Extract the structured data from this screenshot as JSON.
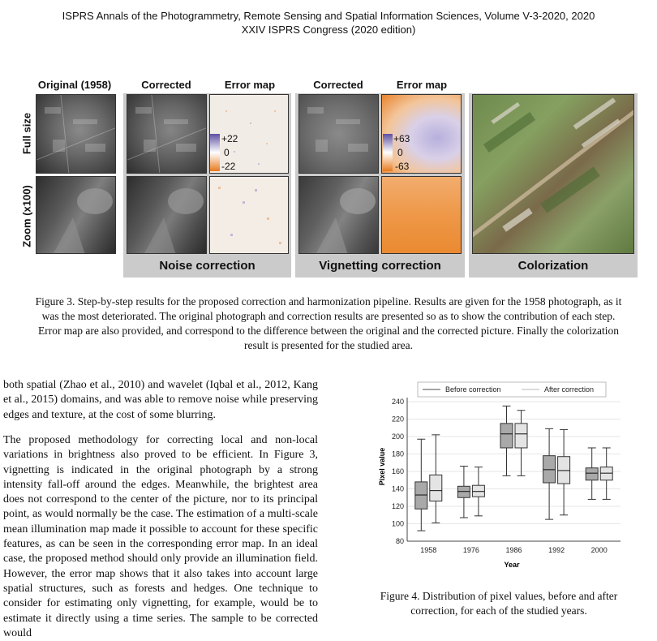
{
  "header": {
    "line1": "ISPRS Annals of the Photogrammetry, Remote Sensing and Spatial Information Sciences, Volume V-3-2020, 2020",
    "line2": "XXIV ISPRS Congress (2020 edition)"
  },
  "figure3": {
    "col_original": "Original (1958)",
    "col_corrected_1": "Corrected",
    "col_error_1": "Error map",
    "col_corrected_2": "Corrected",
    "col_error_2": "Error map",
    "row_full": "Full size",
    "row_zoom": "Zoom (x100)",
    "noise_scale": {
      "top": "+22",
      "mid": "0",
      "bottom": "-22"
    },
    "vign_scale": {
      "top": "+63",
      "mid": "0",
      "bottom": "-63"
    },
    "group_noise": "Noise correction",
    "group_vignetting": "Vignetting correction",
    "group_colorization": "Colorization",
    "caption_l1": "Figure 3. Step-by-step results for the proposed correction and harmonization pipeline. Results are given for the 1958 photograph, as it",
    "caption_l2": "was the most deteriorated. The original photograph and correction results are presented so as to show the contribution of each step.",
    "caption_l3": "Error map are also provided, and correspond to the difference between the original and the corrected picture. Finally the colorization",
    "caption_l4": "result is presented for the studied area."
  },
  "body": {
    "para1": "both spatial (Zhao et al., 2010) and wavelet (Iqbal et al., 2012, Kang et al., 2015) domains, and was able to remove noise while preserving edges and texture, at the cost of some blurring.",
    "para2": "The proposed methodology for correcting local and non-local variations in brightness also proved to be efficient. In Figure 3, vignetting is indicated in the original photograph by a strong intensity fall-off around the edges. Meanwhile, the brightest area does not correspond to the center of the picture, nor to its principal point, as would normally be the case. The estimation of a multi-scale mean illumination map made it possible to account for these specific features, as can be seen in the corresponding error map. In an ideal case, the proposed method should only provide an illumination field. However, the error map shows that it also takes into account large spatial structures, such as forests and hedges. One technique to consider for estimating only vignetting, for example, would be to estimate it directly using a time series. The sample to be corrected would"
  },
  "figure4": {
    "caption_l1": "Figure 4. Distribution of pixel values, before and after",
    "caption_l2": "correction, for each of the studied years."
  },
  "chart_data": {
    "type": "box",
    "xlabel": "Year",
    "ylabel": "Pixel value",
    "ylim": [
      80,
      240
    ],
    "yticks": [
      80,
      100,
      120,
      140,
      160,
      180,
      200,
      220,
      240
    ],
    "grid": true,
    "legend_position": "top",
    "categories": [
      "1958",
      "1976",
      "1986",
      "1992",
      "2000"
    ],
    "series": [
      {
        "name": "Before correction",
        "color": "#a9a9a9",
        "boxes": [
          {
            "min": 92,
            "q1": 117,
            "median": 133,
            "q3": 148,
            "max": 197
          },
          {
            "min": 107,
            "q1": 130,
            "median": 137,
            "q3": 143,
            "max": 166
          },
          {
            "min": 155,
            "q1": 187,
            "median": 203,
            "q3": 215,
            "max": 235
          },
          {
            "min": 105,
            "q1": 147,
            "median": 162,
            "q3": 178,
            "max": 209
          },
          {
            "min": 128,
            "q1": 150,
            "median": 158,
            "q3": 164,
            "max": 187
          }
        ]
      },
      {
        "name": "After correction",
        "color": "#e4e4e4",
        "boxes": [
          {
            "min": 101,
            "q1": 126,
            "median": 138,
            "q3": 156,
            "max": 202
          },
          {
            "min": 109,
            "q1": 131,
            "median": 137,
            "q3": 144,
            "max": 165
          },
          {
            "min": 155,
            "q1": 187,
            "median": 203,
            "q3": 215,
            "max": 230
          },
          {
            "min": 110,
            "q1": 146,
            "median": 161,
            "q3": 177,
            "max": 208
          },
          {
            "min": 128,
            "q1": 150,
            "median": 158,
            "q3": 165,
            "max": 187
          }
        ]
      }
    ]
  }
}
